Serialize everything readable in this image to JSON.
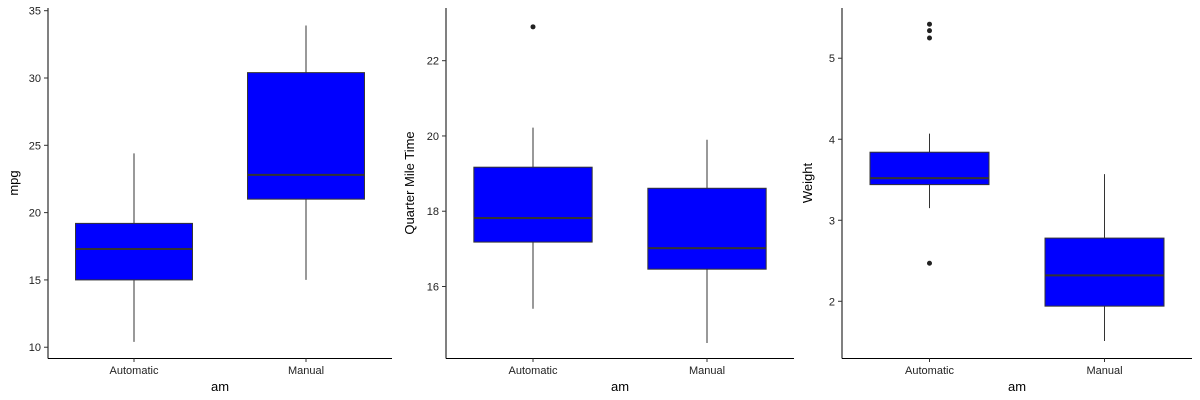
{
  "chart_data": [
    {
      "type": "boxplot",
      "xlabel": "am",
      "ylabel": "mpg",
      "ylim": [
        9.2,
        35.2
      ],
      "yticks": [
        10,
        15,
        20,
        25,
        30,
        35
      ],
      "categories": [
        "Automatic",
        "Manual"
      ],
      "fill_color": "#0000ff",
      "grid": false,
      "boxes": [
        {
          "category": "Automatic",
          "whisker_low": 10.4,
          "q1": 15.0,
          "median": 17.3,
          "q3": 19.2,
          "whisker_high": 24.4,
          "outliers": []
        },
        {
          "category": "Manual",
          "whisker_low": 15.0,
          "q1": 21.0,
          "median": 22.8,
          "q3": 30.4,
          "whisker_high": 33.9,
          "outliers": []
        }
      ]
    },
    {
      "type": "boxplot",
      "xlabel": "am",
      "ylabel": "Quarter Mile Time",
      "ylim": [
        14.1,
        23.4
      ],
      "yticks": [
        16,
        18,
        20,
        22
      ],
      "categories": [
        "Automatic",
        "Manual"
      ],
      "fill_color": "#0000ff",
      "grid": false,
      "boxes": [
        {
          "category": "Automatic",
          "whisker_low": 15.41,
          "q1": 17.18,
          "median": 17.82,
          "q3": 19.17,
          "whisker_high": 20.22,
          "outliers": [
            22.9
          ]
        },
        {
          "category": "Manual",
          "whisker_low": 14.5,
          "q1": 16.46,
          "median": 17.02,
          "q3": 18.61,
          "whisker_high": 19.9,
          "outliers": []
        }
      ]
    },
    {
      "type": "boxplot",
      "xlabel": "am",
      "ylabel": "Weight",
      "ylim": [
        1.3,
        5.62
      ],
      "yticks": [
        2,
        3,
        4,
        5
      ],
      "categories": [
        "Automatic",
        "Manual"
      ],
      "fill_color": "#0000ff",
      "grid": false,
      "boxes": [
        {
          "category": "Automatic",
          "whisker_low": 3.15,
          "q1": 3.44,
          "median": 3.52,
          "q3": 3.84,
          "whisker_high": 4.07,
          "outliers": [
            5.25,
            5.34,
            5.42,
            2.47
          ]
        },
        {
          "category": "Manual",
          "whisker_low": 1.51,
          "q1": 1.94,
          "median": 2.32,
          "q3": 2.78,
          "whisker_high": 3.57,
          "outliers": []
        }
      ]
    }
  ]
}
